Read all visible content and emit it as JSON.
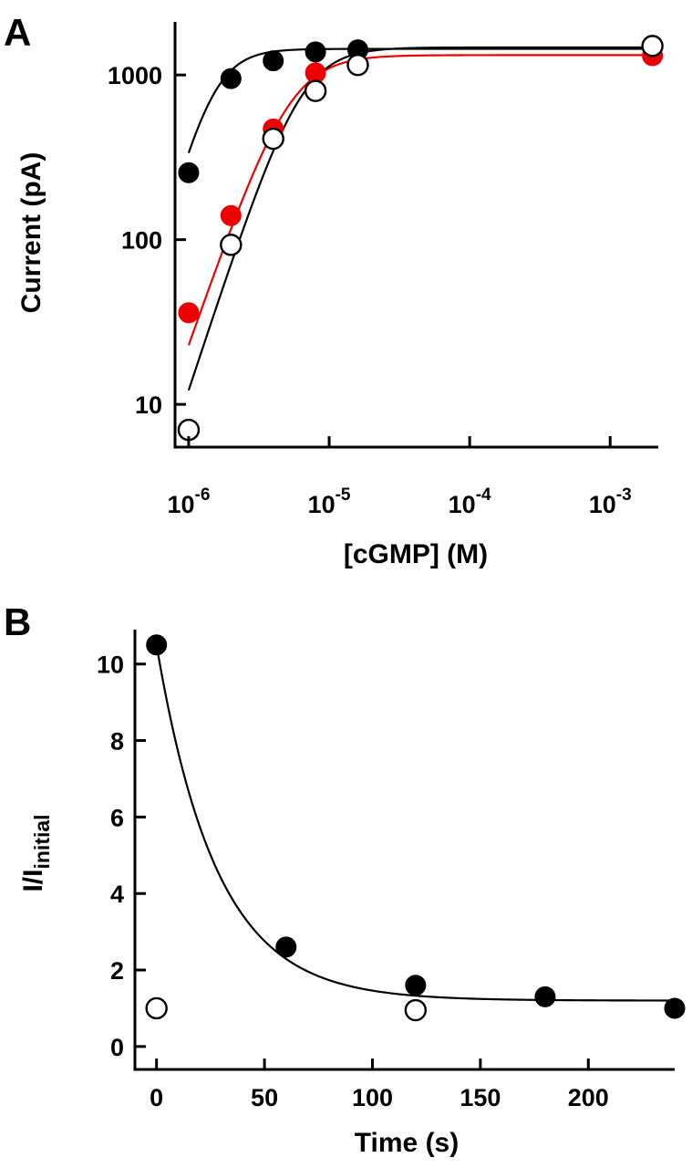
{
  "chart_data": [
    {
      "panel": "A",
      "type": "scatter",
      "xscale": "log",
      "yscale": "log",
      "xlabel": "[cGMP] (M)",
      "ylabel": "Current (pA)",
      "xlim": [
        8e-07,
        0.0022
      ],
      "ylim": [
        5.5,
        2100
      ],
      "x_ticks": [
        {
          "value": 1e-06,
          "base": "10",
          "exp": "-6"
        },
        {
          "value": 1e-05,
          "base": "10",
          "exp": "-5"
        },
        {
          "value": 0.0001,
          "base": "10",
          "exp": "-4"
        },
        {
          "value": 0.001,
          "base": "10",
          "exp": "-3"
        }
      ],
      "y_ticks": [
        {
          "value": 10,
          "label": "10"
        },
        {
          "value": 100,
          "label": "100"
        },
        {
          "value": 1000,
          "label": "1000"
        }
      ],
      "series": [
        {
          "name": "filled black",
          "marker": "filled",
          "color": "#000000",
          "x": [
            1e-06,
            2e-06,
            4e-06,
            8e-06,
            1.6e-05
          ],
          "y": [
            255,
            950,
            1220,
            1380,
            1420
          ],
          "fit": {
            "imax": 1440,
            "k": 1.45e-06,
            "n": 3.2,
            "color": "#000000"
          }
        },
        {
          "name": "filled red",
          "marker": "filled",
          "color": "#ee0000",
          "x": [
            1e-06,
            2e-06,
            4e-06,
            8e-06,
            0.002
          ],
          "y": [
            36,
            140,
            470,
            1030,
            1310
          ],
          "fit": {
            "imax": 1320,
            "k": 5.2e-06,
            "n": 2.45,
            "color": "#ee0000"
          }
        },
        {
          "name": "open",
          "marker": "open",
          "color": "#000000",
          "x": [
            1e-06,
            2e-06,
            4e-06,
            8e-06,
            1.6e-05,
            0.002
          ],
          "y": [
            7,
            93,
            410,
            800,
            1150,
            1500
          ],
          "fit": {
            "imax": 1470,
            "k": 6.3e-06,
            "n": 2.6,
            "color": "#000000"
          }
        }
      ]
    },
    {
      "panel": "B",
      "type": "scatter",
      "xlabel": "Time (s)",
      "ylabel_main": "I/I",
      "ylabel_sub": "initial",
      "xlim": [
        -10,
        240
      ],
      "ylim": [
        -0.6,
        10.9
      ],
      "x_ticks": [
        0,
        50,
        100,
        150,
        200
      ],
      "y_ticks": [
        0,
        2,
        4,
        6,
        8,
        10
      ],
      "series": [
        {
          "name": "filled",
          "marker": "filled",
          "color": "#000000",
          "x": [
            0,
            60,
            120,
            180,
            240
          ],
          "y": [
            10.5,
            2.6,
            1.6,
            1.3,
            1.0
          ]
        },
        {
          "name": "open",
          "marker": "open",
          "color": "#000000",
          "x": [
            0,
            120
          ],
          "y": [
            1.0,
            0.95
          ]
        }
      ],
      "fit": {
        "type": "exp_decay",
        "y0": 10.5,
        "plateau": 1.2,
        "tau": 28,
        "color": "#000000"
      }
    }
  ]
}
